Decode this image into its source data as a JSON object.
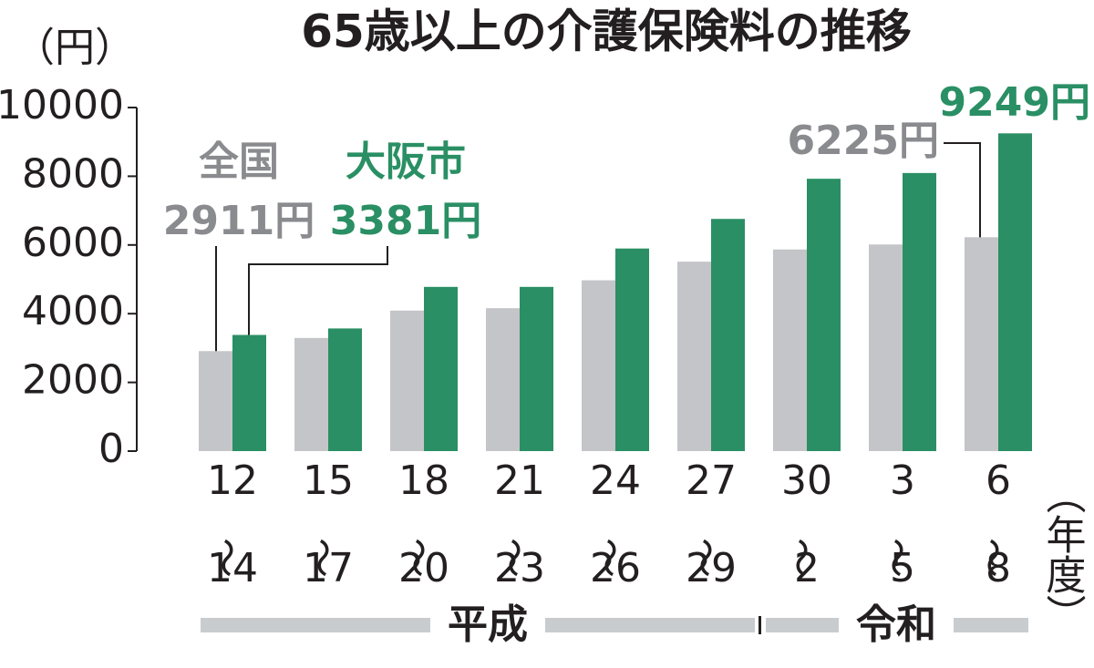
{
  "chart_data": {
    "type": "bar",
    "title": "65歳以上の介護保険料の推移",
    "y_label": "（円）",
    "x_label": "（年度）",
    "categories": [
      "12〜14",
      "15〜17",
      "18〜20",
      "21〜23",
      "24〜26",
      "27〜29",
      "30〜2",
      "3〜5",
      "6〜8"
    ],
    "eras": [
      "平成",
      "令和"
    ],
    "series": [
      {
        "name": "全国",
        "color": "#c4c5c9",
        "values": [
          2911,
          3293,
          4090,
          4160,
          4972,
          5514,
          5869,
          6014,
          6225
        ],
        "value_labels": [
          "2911円",
          null,
          null,
          null,
          null,
          null,
          null,
          null,
          "6225円"
        ]
      },
      {
        "name": "大阪市",
        "color": "#2a8f64",
        "values": [
          3381,
          3570,
          4780,
          4780,
          5897,
          6758,
          7927,
          8094,
          9249
        ],
        "value_labels": [
          "3381円",
          null,
          null,
          null,
          null,
          null,
          null,
          null,
          "9249円"
        ]
      }
    ],
    "ylim": [
      0,
      10000
    ],
    "yticks": [
      0,
      2000,
      4000,
      6000,
      8000,
      10000
    ]
  }
}
